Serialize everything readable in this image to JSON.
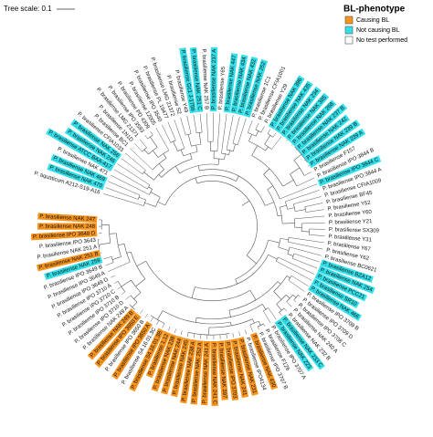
{
  "header": {
    "scale_label": "Tree scale: 0.1"
  },
  "legend": {
    "title": "BL-phenotype",
    "items": [
      {
        "label": "Causing BL",
        "color": "#f7941d"
      },
      {
        "label": "Not causing BL",
        "color": "#33e0ea"
      },
      {
        "label": "No test performed",
        "color": "#ffffff"
      }
    ]
  },
  "leaves": [
    {
      "label": "P. aquaticum A212-S19-A16",
      "group": 2
    },
    {
      "label": "P. brasiliense NAK 470",
      "group": 1
    },
    {
      "label": "P. brasiliense NAK 469",
      "group": 1
    },
    {
      "label": "P. brasiliense NAK 471",
      "group": 2
    },
    {
      "label": "P. brasiliense ATCC BAA-417",
      "group": 1
    },
    {
      "label": "P. brasiliense NAK 246",
      "group": 1
    },
    {
      "label": "P. brasiliense NAK 256",
      "group": 1
    },
    {
      "label": "P. brasiliense CFIA1033",
      "group": 2
    },
    {
      "label": "P. brasiliense BC1",
      "group": 2
    },
    {
      "label": "P. brasiliense 1N1D",
      "group": 2
    },
    {
      "label": "P. brasiliense LMG 21371",
      "group": 2
    },
    {
      "label": "P. brasiliense IPO 3593",
      "group": 2
    },
    {
      "label": "P. brasiliense PD 4309",
      "group": 2
    },
    {
      "label": "P. brasiliense 12005",
      "group": 2
    },
    {
      "label": "P. brasiliense IPO 3540",
      "group": 2
    },
    {
      "label": "P. brasiliense PL 19477",
      "group": 2
    },
    {
      "label": "P. brasiliense LMG 21372",
      "group": 2
    },
    {
      "label": "P. brasiliense S2",
      "group": 2
    },
    {
      "label": "P. brasiliense Y49",
      "group": 2
    },
    {
      "label": "P. brasiliense Gc1 J-1756",
      "group": 1
    },
    {
      "label": "P. brasiliense NAK 251 C",
      "group": 1
    },
    {
      "label": "P. brasiliense NAK 257 B",
      "group": 2
    },
    {
      "label": "P. brasiliense NAK 237 A",
      "group": 1
    },
    {
      "label": "P. brasiliense Y65",
      "group": 2
    },
    {
      "label": "P. brasiliense NAK 447",
      "group": 1
    },
    {
      "label": "P. brasiliense NAK 434",
      "group": 1
    },
    {
      "label": "P. brasiliense NAK 432",
      "group": 1
    },
    {
      "label": "P. brasiliense NAK 252",
      "group": 1
    },
    {
      "label": "P. brasiliense 1C1",
      "group": 2
    },
    {
      "label": "P. brasiliense CFIA1001",
      "group": 2
    },
    {
      "label": "P. brasiliense Y29",
      "group": 2
    },
    {
      "label": "P. brasiliense NAK 396",
      "group": 1
    },
    {
      "label": "P. brasiliense NAK 435",
      "group": 1
    },
    {
      "label": "P. brasiliense NAK 234",
      "group": 1
    },
    {
      "label": "P. brasiliense NAK 385",
      "group": 1
    },
    {
      "label": "P. brasiliense NAK 268",
      "group": 1
    },
    {
      "label": "P. brasiliense NAK 237 B",
      "group": 1
    },
    {
      "label": "P. brasiliense NAK 242",
      "group": 1
    },
    {
      "label": "P. brasiliense NAK 239 B",
      "group": 1
    },
    {
      "label": "P. brasiliense NAK 239 A",
      "group": 1
    },
    {
      "label": "P. brasiliense F157",
      "group": 2
    },
    {
      "label": "P. brasiliense IPO 3844 B",
      "group": 2
    },
    {
      "label": "P. brasiliense IPO 3844 C",
      "group": 1
    },
    {
      "label": "P. brasiliense IPO 3844 A",
      "group": 2
    },
    {
      "label": "P. brasiliense CFIA1009",
      "group": 2
    },
    {
      "label": "P. brasiliense BF45",
      "group": 2
    },
    {
      "label": "P. brasiliense Y52",
      "group": 2
    },
    {
      "label": "P. brasiliense Y60",
      "group": 2
    },
    {
      "label": "P. brasiliense Y21",
      "group": 2
    },
    {
      "label": "P. brasiliense SX309",
      "group": 2
    },
    {
      "label": "P. brasiliense Y31",
      "group": 2
    },
    {
      "label": "P. brasiliense Y67",
      "group": 2
    },
    {
      "label": "P. brasiliense Y62",
      "group": 2
    },
    {
      "label": "P. brasiliense BC0621",
      "group": 2
    },
    {
      "label": "P. brasiliense BZA12",
      "group": 1
    },
    {
      "label": "P. brasiliense NAK 254",
      "group": 1
    },
    {
      "label": "P. brasiliense PCC21",
      "group": 1
    },
    {
      "label": "P. brasiliense SR10",
      "group": 1
    },
    {
      "label": "P. brasiliense NAK 466",
      "group": 1
    },
    {
      "label": "P. brasiliense IPO 3709 B",
      "group": 2
    },
    {
      "label": "P. brasiliense IPO 3709 D",
      "group": 2
    },
    {
      "label": "P. brasiliense IPO 3708 C",
      "group": 2
    },
    {
      "label": "P. brasiliense NAK 240 A",
      "group": 2
    },
    {
      "label": "P. brasiliense NAK 232 B",
      "group": 2
    },
    {
      "label": "P. brasiliense NAK 233 C",
      "group": 1
    },
    {
      "label": "P. brasiliense NAK 223",
      "group": 1
    },
    {
      "label": "P. brasiliense IPO 3707 A",
      "group": 2
    },
    {
      "label": "P. brasiliense F126",
      "group": 2
    },
    {
      "label": "P. brasiliense IPO 3707 B",
      "group": 2
    },
    {
      "label": "P. brasiliense NAK 430",
      "group": 0
    },
    {
      "label": "P. brasiliense IPO4134",
      "group": 2
    },
    {
      "label": "P. brasiliense NAK 231",
      "group": 0
    },
    {
      "label": "P. brasiliense NAK 241",
      "group": 0
    },
    {
      "label": "P. brasiliense IPO 3703",
      "group": 0
    },
    {
      "label": "P. brasiliense NAK 397",
      "group": 0
    },
    {
      "label": "P. brasiliense NAK 241 C",
      "group": 0
    },
    {
      "label": "P. brasiliense NAK 241 A",
      "group": 0
    },
    {
      "label": "P. brasiliense NAK 252 A",
      "group": 0
    },
    {
      "label": "P. brasiliense NAK 238 A",
      "group": 0
    },
    {
      "label": "P. brasiliense NAK 245",
      "group": 0
    },
    {
      "label": "P. brasiliense NAK 244",
      "group": 0
    },
    {
      "label": "P. brasiliense NAK 238",
      "group": 0
    },
    {
      "label": "P. brasiliense 1.12",
      "group": 0
    },
    {
      "label": "P. brasiliense S4.16.01.3B",
      "group": 0
    },
    {
      "label": "P. brasiliense S4.16.01.3C",
      "group": 2
    },
    {
      "label": "P. brasiliense IPO 3650 A",
      "group": 0
    },
    {
      "label": "P. brasiliense IPO 3650 B",
      "group": 2
    },
    {
      "label": "P. brasiliense IPO 3650 E",
      "group": 0
    },
    {
      "label": "P. brasiliense NAK 249 B",
      "group": 0
    },
    {
      "label": "P. brasiliense NAK 249 A",
      "group": 2
    },
    {
      "label": "P. brasiliense IPO 3710 D",
      "group": 2
    },
    {
      "label": "P. brasiliense IPO 3710 B",
      "group": 2
    },
    {
      "label": "P. brasiliense IPO 3710 C",
      "group": 2
    },
    {
      "label": "P. brasiliense IPO 3710 A",
      "group": 2
    },
    {
      "label": "P. brasiliense IPO 3649 D",
      "group": 2
    },
    {
      "label": "P. brasiliense IPO 3649 A",
      "group": 2
    },
    {
      "label": "P. brasiliense IPO 3649 B",
      "group": 2
    },
    {
      "label": "P. brasiliense NAK 259",
      "group": 1
    },
    {
      "label": "P. brasiliense NAK 251 B",
      "group": 0
    },
    {
      "label": "P. brasiliense NAK 251 A",
      "group": 2
    },
    {
      "label": "P. brasiliense IPO 3643",
      "group": 2
    },
    {
      "label": "P. brasiliense IPO 3648 D",
      "group": 0
    },
    {
      "label": "P. brasiliense NAK 248",
      "group": 0
    },
    {
      "label": "P. brasiliense NAK 247",
      "group": 0
    }
  ]
}
